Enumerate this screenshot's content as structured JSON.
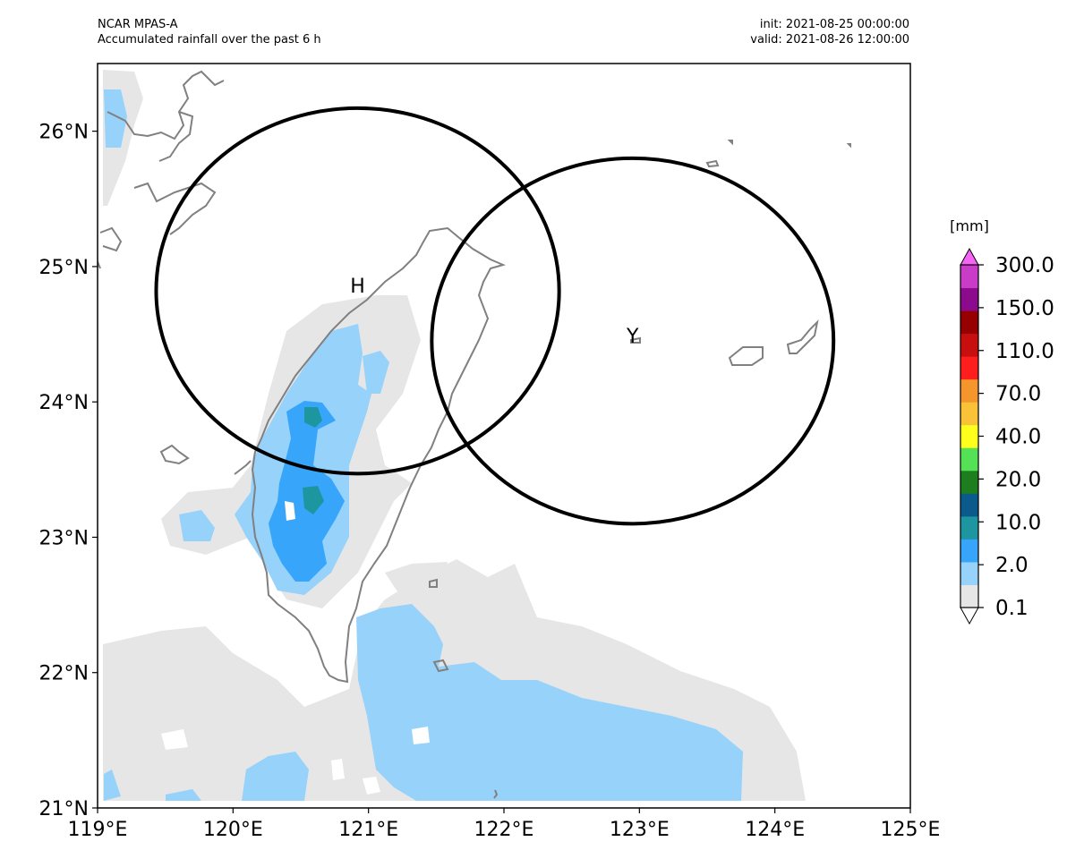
{
  "header": {
    "model": "NCAR MPAS-A",
    "description": "Accumulated rainfall over the past 6 h",
    "init": "init: 2021-08-25 00:00:00",
    "valid": "valid: 2021-08-26 12:00:00"
  },
  "map": {
    "lon_range": [
      119,
      125
    ],
    "lat_range": [
      21,
      26.5
    ],
    "lon_ticks": [
      "119°E",
      "120°E",
      "121°E",
      "122°E",
      "123°E",
      "124°E",
      "125°E"
    ],
    "lat_ticks": [
      "21°N",
      "22°N",
      "23°N",
      "24°N",
      "25°N",
      "26°N"
    ],
    "circles": [
      {
        "label": "H",
        "center_lon": 120.92,
        "center_lat": 24.82,
        "radius_deg": 1.35
      },
      {
        "label": "Y",
        "center_lon": 122.95,
        "center_lat": 24.45,
        "radius_deg": 1.35
      }
    ]
  },
  "colorbar": {
    "unit": "[mm]",
    "labels": [
      "0.1",
      "2.0",
      "10.0",
      "20.0",
      "40.0",
      "70.0",
      "110.0",
      "150.0",
      "300.0"
    ],
    "colors": [
      "#ffffff",
      "#e6e6e6",
      "#96d2fa",
      "#37a5fa",
      "#1e96a0",
      "#0a5a8c",
      "#1e7d1e",
      "#55e155",
      "#ffff1e",
      "#fac337",
      "#f5962d",
      "#ff1e1e",
      "#c80f0f",
      "#960000",
      "#8c0a8c",
      "#c83cc8",
      "#f564f5"
    ],
    "extend": "both"
  },
  "colors": {
    "coastline": "#808080",
    "rain_light": "#e6e6e6",
    "rain_blue1": "#96d2fa",
    "rain_blue2": "#37a5fa",
    "rain_teal": "#1e96a0"
  }
}
